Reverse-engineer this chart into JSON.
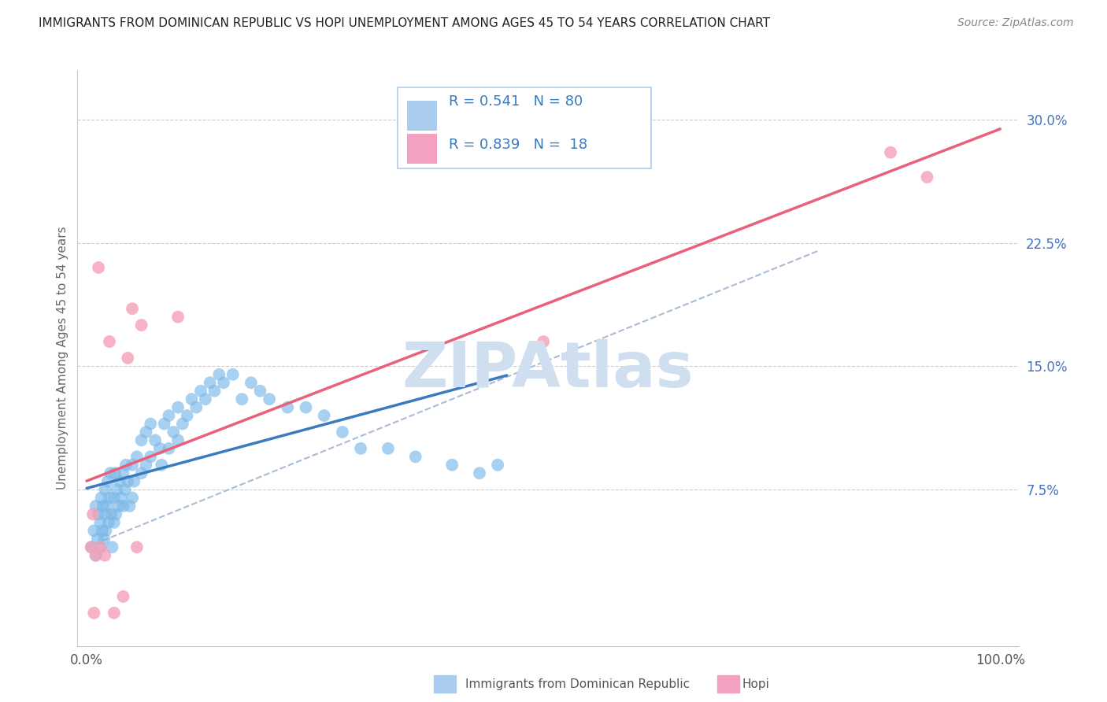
{
  "title": "IMMIGRANTS FROM DOMINICAN REPUBLIC VS HOPI UNEMPLOYMENT AMONG AGES 45 TO 54 YEARS CORRELATION CHART",
  "source": "Source: ZipAtlas.com",
  "ylabel": "Unemployment Among Ages 45 to 54 years",
  "xlim": [
    -0.01,
    1.02
  ],
  "ylim": [
    -0.02,
    0.33
  ],
  "yticks": [
    0.0,
    0.075,
    0.15,
    0.225,
    0.3
  ],
  "ytick_labels": [
    "",
    "7.5%",
    "15.0%",
    "22.5%",
    "30.0%"
  ],
  "xticks": [
    0.0,
    1.0
  ],
  "xtick_labels": [
    "0.0%",
    "100.0%"
  ],
  "series1_color": "#7ab8e8",
  "series2_color": "#f4a0b8",
  "line1_color": "#3a7bbf",
  "line2_color": "#e8607a",
  "line1_end_x": 0.46,
  "dash_color": "#aabbd4",
  "watermark": "ZIPAtlas",
  "watermark_color": "#d0dff0",
  "blue_dots_x": [
    0.005,
    0.008,
    0.01,
    0.01,
    0.012,
    0.013,
    0.015,
    0.015,
    0.016,
    0.017,
    0.018,
    0.019,
    0.02,
    0.02,
    0.021,
    0.022,
    0.023,
    0.024,
    0.025,
    0.026,
    0.027,
    0.028,
    0.03,
    0.03,
    0.031,
    0.032,
    0.033,
    0.035,
    0.036,
    0.038,
    0.04,
    0.04,
    0.042,
    0.043,
    0.045,
    0.047,
    0.05,
    0.05,
    0.052,
    0.055,
    0.06,
    0.06,
    0.065,
    0.065,
    0.07,
    0.07,
    0.075,
    0.08,
    0.082,
    0.085,
    0.09,
    0.09,
    0.095,
    0.1,
    0.1,
    0.105,
    0.11,
    0.115,
    0.12,
    0.125,
    0.13,
    0.135,
    0.14,
    0.145,
    0.15,
    0.16,
    0.17,
    0.18,
    0.19,
    0.2,
    0.22,
    0.24,
    0.26,
    0.28,
    0.3,
    0.33,
    0.36,
    0.4,
    0.43,
    0.45
  ],
  "blue_dots_y": [
    0.04,
    0.05,
    0.035,
    0.065,
    0.045,
    0.06,
    0.04,
    0.055,
    0.07,
    0.05,
    0.065,
    0.045,
    0.06,
    0.075,
    0.05,
    0.065,
    0.08,
    0.055,
    0.07,
    0.085,
    0.06,
    0.04,
    0.055,
    0.07,
    0.085,
    0.06,
    0.075,
    0.065,
    0.08,
    0.07,
    0.065,
    0.085,
    0.075,
    0.09,
    0.08,
    0.065,
    0.07,
    0.09,
    0.08,
    0.095,
    0.085,
    0.105,
    0.09,
    0.11,
    0.095,
    0.115,
    0.105,
    0.1,
    0.09,
    0.115,
    0.1,
    0.12,
    0.11,
    0.105,
    0.125,
    0.115,
    0.12,
    0.13,
    0.125,
    0.135,
    0.13,
    0.14,
    0.135,
    0.145,
    0.14,
    0.145,
    0.13,
    0.14,
    0.135,
    0.13,
    0.125,
    0.125,
    0.12,
    0.11,
    0.1,
    0.1,
    0.095,
    0.09,
    0.085,
    0.09
  ],
  "pink_dots_x": [
    0.005,
    0.007,
    0.008,
    0.01,
    0.013,
    0.015,
    0.02,
    0.025,
    0.03,
    0.04,
    0.045,
    0.05,
    0.055,
    0.06,
    0.1,
    0.5,
    0.88,
    0.92
  ],
  "pink_dots_y": [
    0.04,
    0.06,
    0.0,
    0.035,
    0.21,
    0.04,
    0.035,
    0.165,
    0.0,
    0.01,
    0.155,
    0.185,
    0.04,
    0.175,
    0.18,
    0.165,
    0.28,
    0.265
  ]
}
